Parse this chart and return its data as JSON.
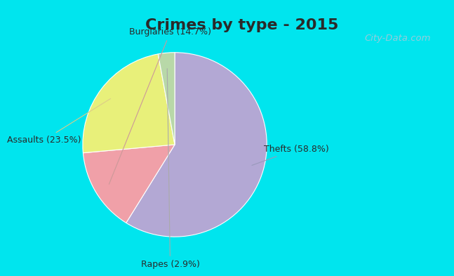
{
  "title": "Crimes by type - 2015",
  "labels": [
    "Thefts",
    "Burglaries",
    "Assaults",
    "Rapes"
  ],
  "values": [
    58.8,
    14.7,
    23.5,
    2.9
  ],
  "colors": [
    "#b3a8d4",
    "#f0a0a8",
    "#e8f07a",
    "#b8d8a8"
  ],
  "label_display": [
    "Thefts (58.8%)",
    "Burglaries (14.7%)",
    "Assaults (23.5%)",
    "Rapes (2.9%)"
  ],
  "startangle": 90,
  "bg_color_border": "#00e5ee",
  "bg_color_main": "#d8ede0",
  "title_fontsize": 16,
  "title_color": "#2a2a2a",
  "watermark": "City-Data.com",
  "label_fontsize": 9,
  "border_width": 8
}
